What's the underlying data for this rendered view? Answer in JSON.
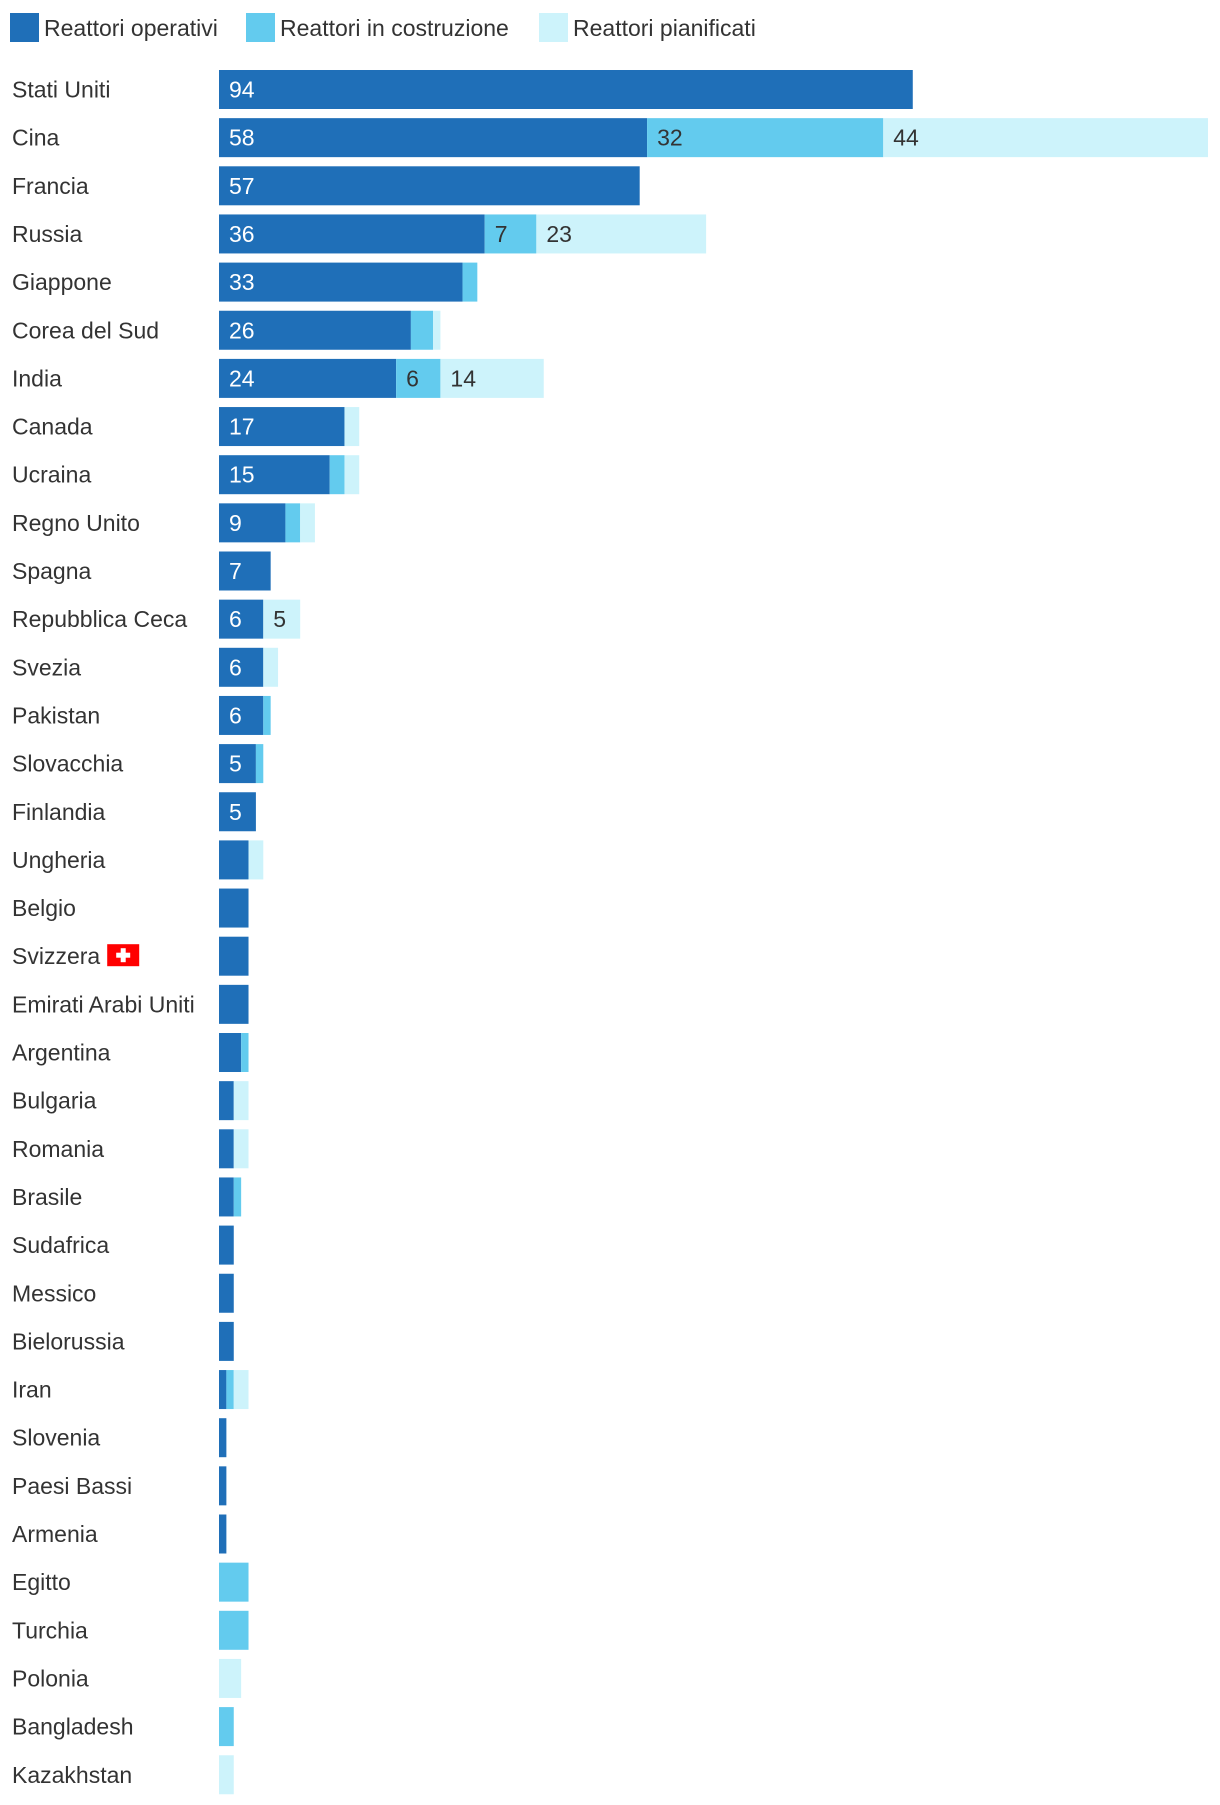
{
  "chart_data": {
    "type": "bar",
    "orientation": "horizontal",
    "stacked": true,
    "legend_position": "top-left",
    "grid": false,
    "title": "",
    "xlabel": "",
    "ylabel": "",
    "categories": [
      "Stati Uniti",
      "Cina",
      "Francia",
      "Russia",
      "Giappone",
      "Corea del Sud",
      "India",
      "Canada",
      "Ucraina",
      "Regno Unito",
      "Spagna",
      "Repubblica Ceca",
      "Svezia",
      "Pakistan",
      "Slovacchia",
      "Finlandia",
      "Ungheria",
      "Belgio",
      "Svizzera",
      "Emirati Arabi Uniti",
      "Argentina",
      "Bulgaria",
      "Romania",
      "Brasile",
      "Sudafrica",
      "Messico",
      "Bielorussia",
      "Iran",
      "Slovenia",
      "Paesi Bassi",
      "Armenia",
      "Egitto",
      "Turchia",
      "Polonia",
      "Bangladesh",
      "Kazakhstan"
    ],
    "series": [
      {
        "name": "Reattori operativi",
        "color": "#1f6fb8",
        "values": [
          94,
          58,
          57,
          36,
          33,
          26,
          24,
          17,
          15,
          9,
          7,
          6,
          6,
          6,
          5,
          5,
          4,
          4,
          4,
          4,
          3,
          2,
          2,
          2,
          2,
          2,
          2,
          1,
          1,
          1,
          1,
          0,
          0,
          0,
          0,
          0
        ],
        "show_labels": [
          true,
          true,
          true,
          true,
          true,
          true,
          true,
          true,
          true,
          true,
          true,
          true,
          true,
          true,
          true,
          true,
          false,
          false,
          false,
          false,
          false,
          false,
          false,
          false,
          false,
          false,
          false,
          false,
          false,
          false,
          false,
          false,
          false,
          false,
          false,
          false
        ]
      },
      {
        "name": "Reattori in costruzione",
        "color": "#63cbee",
        "values": [
          0,
          32,
          0,
          7,
          2,
          3,
          6,
          0,
          2,
          2,
          0,
          0,
          0,
          1,
          1,
          0,
          0,
          0,
          0,
          0,
          1,
          0,
          0,
          1,
          0,
          0,
          0,
          1,
          0,
          0,
          0,
          4,
          4,
          0,
          2,
          0
        ],
        "show_labels": [
          false,
          true,
          false,
          true,
          false,
          false,
          true,
          false,
          false,
          false,
          false,
          false,
          false,
          false,
          false,
          false,
          false,
          false,
          false,
          false,
          false,
          false,
          false,
          false,
          false,
          false,
          false,
          false,
          false,
          false,
          false,
          false,
          false,
          false,
          false,
          false
        ]
      },
      {
        "name": "Reattori pianificati",
        "color": "#cdf3fb",
        "values": [
          0,
          44,
          0,
          23,
          0,
          1,
          14,
          2,
          2,
          2,
          0,
          5,
          2,
          0,
          0,
          0,
          2,
          0,
          0,
          0,
          0,
          2,
          2,
          0,
          0,
          0,
          0,
          2,
          0,
          0,
          0,
          0,
          0,
          3,
          0,
          2
        ],
        "show_labels": [
          false,
          true,
          false,
          true,
          false,
          false,
          true,
          false,
          false,
          false,
          false,
          true,
          false,
          false,
          false,
          false,
          false,
          false,
          false,
          false,
          false,
          false,
          false,
          false,
          false,
          false,
          false,
          false,
          false,
          false,
          false,
          false,
          false,
          false,
          false,
          false
        ]
      }
    ],
    "xlim": [
      0,
      134
    ],
    "flag_category": "Svizzera",
    "flag": {
      "icon": "swiss-flag-icon",
      "color": "#ff0000",
      "cross_color": "#ffffff"
    }
  }
}
